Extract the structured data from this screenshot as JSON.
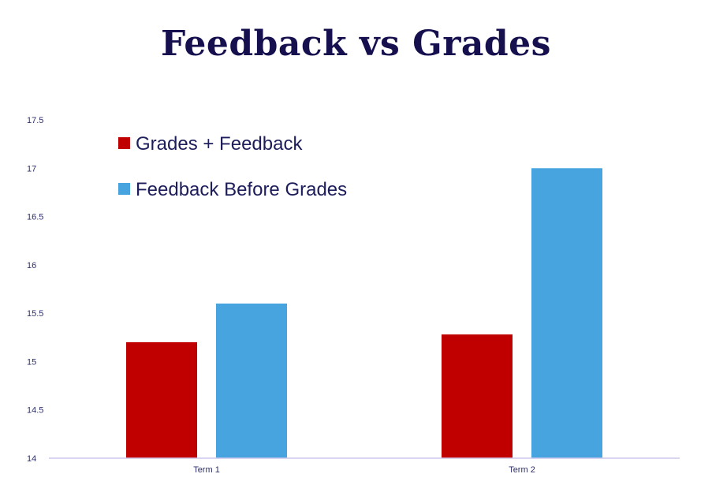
{
  "title": "Feedback vs Grades",
  "chart_data": {
    "type": "bar",
    "categories": [
      "Term 1",
      "Term 2"
    ],
    "series": [
      {
        "name": "Grades + Feedback",
        "color": "#c00000",
        "values": [
          15.2,
          15.28
        ]
      },
      {
        "name": "Feedback Before Grades",
        "color": "#47a4df",
        "values": [
          15.6,
          17.0
        ]
      }
    ],
    "ylim": [
      14,
      17.5
    ],
    "yticks": [
      "14",
      "14.5",
      "15",
      "15.5",
      "16",
      "16.5",
      "17",
      "17.5"
    ],
    "grid": false,
    "legend_position": "top-left"
  }
}
